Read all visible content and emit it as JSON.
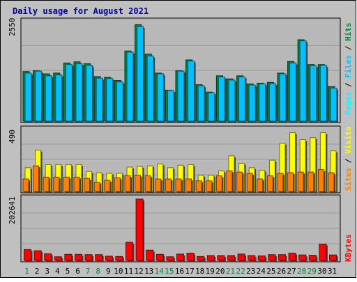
{
  "chart_data": [
    {
      "type": "bar",
      "title": "Daily usage for August 2021",
      "axis_max_label": "2550",
      "ymax": 2550,
      "categories": [
        "1",
        "2",
        "3",
        "4",
        "5",
        "6",
        "7",
        "8",
        "9",
        "10",
        "11",
        "12",
        "13",
        "14",
        "15",
        "16",
        "17",
        "18",
        "19",
        "20",
        "21",
        "22",
        "23",
        "24",
        "25",
        "26",
        "27",
        "28",
        "29",
        "30",
        "31"
      ],
      "weekend_days": [
        "1",
        "7",
        "8",
        "14",
        "15",
        "21",
        "22",
        "28",
        "29"
      ],
      "series": [
        {
          "name": "Hits",
          "color": "#008040",
          "values": [
            1280,
            1300,
            1220,
            1240,
            1500,
            1530,
            1480,
            1150,
            1130,
            1050,
            1810,
            2490,
            1730,
            1240,
            800,
            1300,
            1580,
            940,
            750,
            1170,
            1090,
            1170,
            960,
            980,
            1000,
            1240,
            1540,
            2100,
            1460,
            1460,
            890
          ]
        },
        {
          "name": "Files",
          "color": "#00C0FF",
          "values": [
            1240,
            1290,
            1170,
            1190,
            1460,
            1480,
            1440,
            1110,
            1100,
            1010,
            1780,
            2440,
            1680,
            1220,
            790,
            1290,
            1550,
            910,
            730,
            1140,
            1060,
            1140,
            930,
            960,
            970,
            1220,
            1500,
            2070,
            1430,
            1440,
            850
          ]
        },
        {
          "name": "Pages",
          "color": "#00FFFF",
          "values": [
            0,
            0,
            0,
            0,
            0,
            0,
            0,
            0,
            0,
            0,
            0,
            0,
            0,
            0,
            0,
            0,
            0,
            0,
            0,
            0,
            0,
            0,
            0,
            0,
            0,
            0,
            0,
            0,
            0,
            0,
            0
          ]
        }
      ],
      "label_order": [
        "Pages",
        "Files",
        "Hits"
      ]
    },
    {
      "type": "bar",
      "axis_max_label": "490",
      "ymax": 490,
      "categories": [
        "1",
        "2",
        "3",
        "4",
        "5",
        "6",
        "7",
        "8",
        "9",
        "10",
        "11",
        "12",
        "13",
        "14",
        "15",
        "16",
        "17",
        "18",
        "19",
        "20",
        "21",
        "22",
        "23",
        "24",
        "25",
        "26",
        "27",
        "28",
        "29",
        "30",
        "31"
      ],
      "series": [
        {
          "name": "Visits",
          "color": "#FFFF00",
          "values": [
            190,
            330,
            215,
            215,
            215,
            215,
            160,
            150,
            145,
            145,
            195,
            200,
            205,
            220,
            190,
            210,
            215,
            130,
            130,
            165,
            285,
            225,
            190,
            170,
            250,
            385,
            470,
            415,
            430,
            470,
            325
          ]
        },
        {
          "name": "Sites",
          "color": "#FF8000",
          "values": [
            100,
            205,
            115,
            115,
            115,
            115,
            105,
            75,
            90,
            110,
            125,
            130,
            125,
            100,
            100,
            100,
            100,
            85,
            85,
            125,
            165,
            155,
            145,
            100,
            125,
            145,
            150,
            155,
            155,
            175,
            150
          ]
        }
      ],
      "label_order": [
        "Sites",
        "Visits"
      ]
    },
    {
      "type": "bar",
      "axis_max_label": "202641",
      "ymax": 202641,
      "categories": [
        "1",
        "2",
        "3",
        "4",
        "5",
        "6",
        "7",
        "8",
        "9",
        "10",
        "11",
        "12",
        "13",
        "14",
        "15",
        "16",
        "17",
        "18",
        "19",
        "20",
        "21",
        "22",
        "23",
        "24",
        "25",
        "26",
        "27",
        "28",
        "29",
        "30",
        "31"
      ],
      "series": [
        {
          "name": "KBytes",
          "color": "#FF0000",
          "values": [
            36000,
            32000,
            22000,
            12000,
            20000,
            20000,
            19000,
            19000,
            14000,
            13000,
            60000,
            202641,
            34000,
            20000,
            12000,
            21000,
            24000,
            13000,
            16000,
            16000,
            16000,
            21000,
            16000,
            15000,
            19000,
            19000,
            24000,
            18000,
            17000,
            54000,
            18000
          ]
        }
      ],
      "label_order": [
        "KBytes"
      ]
    }
  ]
}
